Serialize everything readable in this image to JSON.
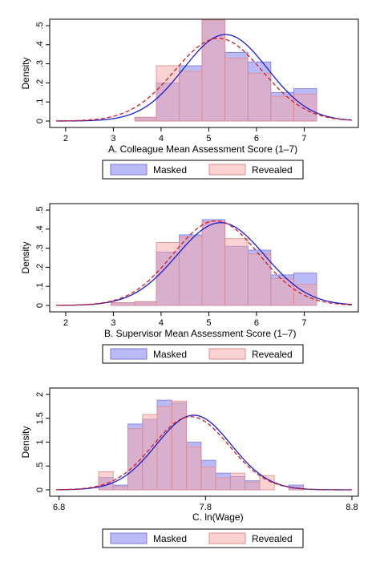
{
  "legend_labels": {
    "masked": "Masked",
    "revealed": "Revealed"
  },
  "colors": {
    "masked_fill": "#8c8cf2",
    "masked_stroke": "#7a7ae0",
    "revealed_fill": "#f6a6a6",
    "revealed_stroke": "#e08a8a",
    "masked_curve": "#1c1cd6",
    "revealed_curve": "#d21e1e"
  },
  "chart_data": [
    {
      "type": "histogram",
      "title": "",
      "xlabel": "A. Colleague Mean Assessment Score (1–7)",
      "ylabel": "Density",
      "xlim": [
        1.8,
        8.0
      ],
      "ylim": [
        0,
        0.5
      ],
      "xticks": [
        "2",
        "3",
        "4",
        "5",
        "6",
        "7"
      ],
      "yticks": [
        "0",
        ".1",
        ".2",
        ".3",
        ".4",
        ".5"
      ],
      "bin_edges": [
        3.45,
        3.9,
        4.38,
        4.86,
        5.34,
        5.82,
        6.3,
        6.78,
        7.26
      ],
      "series": [
        {
          "name": "Masked",
          "values": [
            0.02,
            0.2,
            0.29,
            0.53,
            0.36,
            0.31,
            0.15,
            0.17
          ],
          "curve": {
            "kind": "normal",
            "mean": 5.35,
            "sd": 0.88
          }
        },
        {
          "name": "Revealed",
          "values": [
            0.02,
            0.29,
            0.26,
            0.53,
            0.33,
            0.25,
            0.13,
            0.14
          ],
          "curve": {
            "kind": "normal",
            "mean": 5.2,
            "sd": 0.92
          }
        }
      ]
    },
    {
      "type": "histogram",
      "title": "",
      "xlabel": "B. Supervisor Mean Assessment Score (1–7)",
      "ylabel": "Density",
      "xlim": [
        1.8,
        8.0
      ],
      "ylim": [
        0,
        0.5
      ],
      "xticks": [
        "2",
        "3",
        "4",
        "5",
        "6",
        "7"
      ],
      "yticks": [
        "0",
        ".1",
        ".2",
        ".3",
        ".4",
        ".5"
      ],
      "bin_edges": [
        2.95,
        3.45,
        3.9,
        4.38,
        4.86,
        5.34,
        5.82,
        6.3,
        6.78,
        7.26
      ],
      "series": [
        {
          "name": "Masked",
          "values": [
            0.015,
            0.02,
            0.28,
            0.37,
            0.45,
            0.31,
            0.29,
            0.16,
            0.17
          ],
          "curve": {
            "kind": "normal",
            "mean": 5.25,
            "sd": 0.92
          }
        },
        {
          "name": "Revealed",
          "values": [
            0.015,
            0.02,
            0.33,
            0.36,
            0.44,
            0.35,
            0.27,
            0.14,
            0.11
          ],
          "curve": {
            "kind": "normal",
            "mean": 5.15,
            "sd": 0.9
          }
        }
      ]
    },
    {
      "type": "histogram",
      "title": "",
      "xlabel": "C. ln(Wage)",
      "ylabel": "Density",
      "xlim": [
        6.78,
        8.8
      ],
      "ylim": [
        0,
        2
      ],
      "xticks": [
        "6.8",
        "7.8",
        "8.8"
      ],
      "yticks": [
        "0",
        ".5",
        "1",
        "1.5",
        "2"
      ],
      "bin_edges": [
        7.07,
        7.17,
        7.27,
        7.37,
        7.47,
        7.57,
        7.67,
        7.77,
        7.87,
        7.97,
        8.07,
        8.17,
        8.27,
        8.37,
        8.47
      ],
      "series": [
        {
          "name": "Masked",
          "values": [
            0.26,
            0.1,
            1.38,
            1.48,
            1.88,
            1.82,
            1.0,
            0.62,
            0.35,
            0.28,
            0.19,
            0.0,
            0.0,
            0.1
          ],
          "curve": {
            "kind": "normal",
            "mean": 7.72,
            "sd": 0.255
          }
        },
        {
          "name": "Revealed",
          "values": [
            0.38,
            0.07,
            1.28,
            1.58,
            1.75,
            1.86,
            0.9,
            0.48,
            0.25,
            0.35,
            0.16,
            0.3,
            0.0,
            0.05
          ],
          "curve": {
            "kind": "normal",
            "mean": 7.7,
            "sd": 0.26
          }
        }
      ]
    }
  ]
}
